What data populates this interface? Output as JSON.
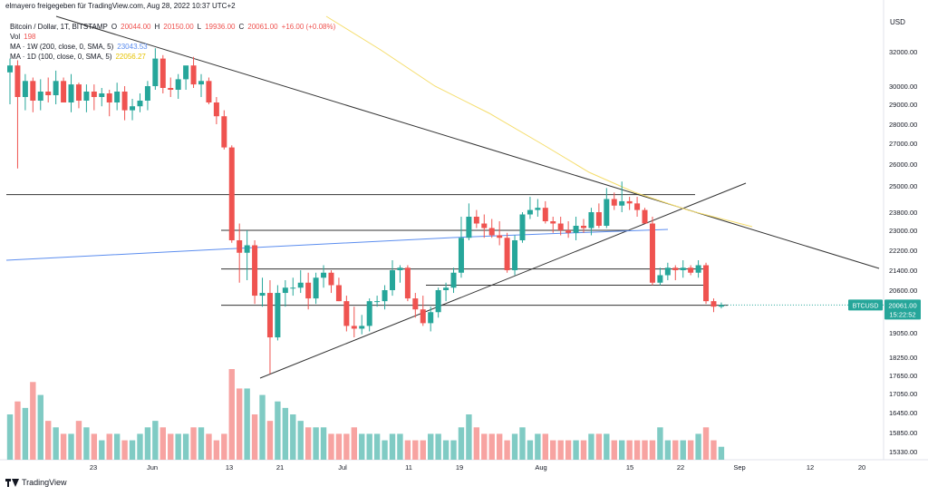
{
  "header": {
    "attribution": "elmayero freigegeben für TradingView.com, Aug 28, 2022 10:37 UTC+2"
  },
  "legend": {
    "symbol": "Bitcoin / Dollar, 1T, BITSTAMP",
    "ohlc": [
      {
        "k": "O",
        "v": "20044.00"
      },
      {
        "k": "H",
        "v": "20150.00"
      },
      {
        "k": "L",
        "v": "19936.00"
      },
      {
        "k": "C",
        "v": "20061.00"
      }
    ],
    "change": "+16.00 (+0.08%)",
    "vol_label": "Vol",
    "vol_value": "198",
    "ma1_label": "MA · 1W (200, close, 0, SMA, 5)",
    "ma1_value": "23043.53",
    "ma2_label": "MA · 1D (100, close, 0, SMA, 5)",
    "ma2_value": "22056.27"
  },
  "price_label": {
    "symbol": "BTCUSD",
    "price": "20061.00",
    "countdown": "15:22:52"
  },
  "footer": {
    "brand": "TradingView"
  },
  "colors": {
    "up": "#26a69a",
    "down": "#ef5350",
    "vol_up": "#80cbc4",
    "vol_down": "#f7a3a1",
    "ma_blue": "#5b8def",
    "ma_yellow": "#f5dd6b",
    "trendline": "#333333",
    "price_badge": "#26a69a"
  },
  "chart_data": {
    "type": "candlestick",
    "currency_label": "USD",
    "y_ticks": [
      "32000.00",
      "30000.00",
      "29000.00",
      "28000.00",
      "27000.00",
      "26000.00",
      "25000.00",
      "23800.00",
      "23000.00",
      "22200.00",
      "21400.00",
      "20600.00",
      "19050.00",
      "18250.00",
      "17650.00",
      "17050.00",
      "16450.00",
      "15850.00",
      "15330.00"
    ],
    "x_ticks": [
      "23",
      "Jun",
      "13",
      "21",
      "Jul",
      "11",
      "19",
      "Aug",
      "15",
      "22",
      "Sep",
      "12",
      "20"
    ],
    "candles": [
      {
        "o": 30800,
        "h": 31600,
        "l": 29000,
        "c": 31200
      },
      {
        "o": 31200,
        "h": 31500,
        "l": 25800,
        "c": 29400
      },
      {
        "o": 29400,
        "h": 30700,
        "l": 28700,
        "c": 30300
      },
      {
        "o": 30300,
        "h": 30500,
        "l": 28600,
        "c": 29200
      },
      {
        "o": 29200,
        "h": 30400,
        "l": 28700,
        "c": 29700
      },
      {
        "o": 29700,
        "h": 30500,
        "l": 29100,
        "c": 29500
      },
      {
        "o": 29500,
        "h": 30900,
        "l": 29000,
        "c": 30300
      },
      {
        "o": 30300,
        "h": 30500,
        "l": 29100,
        "c": 29100
      },
      {
        "o": 29100,
        "h": 30700,
        "l": 28600,
        "c": 30100
      },
      {
        "o": 30100,
        "h": 30200,
        "l": 28800,
        "c": 29200
      },
      {
        "o": 29200,
        "h": 30100,
        "l": 28600,
        "c": 29700
      },
      {
        "o": 29700,
        "h": 30100,
        "l": 28700,
        "c": 29400
      },
      {
        "o": 29400,
        "h": 29900,
        "l": 28900,
        "c": 29600
      },
      {
        "o": 29600,
        "h": 29800,
        "l": 28400,
        "c": 29100
      },
      {
        "o": 29100,
        "h": 30200,
        "l": 28700,
        "c": 29700
      },
      {
        "o": 29700,
        "h": 30000,
        "l": 28200,
        "c": 28700
      },
      {
        "o": 28700,
        "h": 29300,
        "l": 28200,
        "c": 28900
      },
      {
        "o": 28900,
        "h": 29600,
        "l": 28600,
        "c": 29200
      },
      {
        "o": 29200,
        "h": 30300,
        "l": 28700,
        "c": 30000
      },
      {
        "o": 30000,
        "h": 32200,
        "l": 29800,
        "c": 31600
      },
      {
        "o": 31600,
        "h": 31800,
        "l": 29600,
        "c": 29900
      },
      {
        "o": 29900,
        "h": 30500,
        "l": 29400,
        "c": 29800
      },
      {
        "o": 29800,
        "h": 30700,
        "l": 29300,
        "c": 30400
      },
      {
        "o": 30400,
        "h": 31100,
        "l": 29800,
        "c": 31200
      },
      {
        "o": 31200,
        "h": 31700,
        "l": 29900,
        "c": 30100
      },
      {
        "o": 30100,
        "h": 30700,
        "l": 29400,
        "c": 30300
      },
      {
        "o": 30300,
        "h": 30500,
        "l": 29000,
        "c": 29100
      },
      {
        "o": 29100,
        "h": 29400,
        "l": 28000,
        "c": 28400
      },
      {
        "o": 28400,
        "h": 28700,
        "l": 26700,
        "c": 26800
      },
      {
        "o": 26800,
        "h": 26900,
        "l": 22500,
        "c": 22600
      },
      {
        "o": 22600,
        "h": 23300,
        "l": 20900,
        "c": 22100
      },
      {
        "o": 22100,
        "h": 23000,
        "l": 21000,
        "c": 22400
      },
      {
        "o": 22400,
        "h": 22600,
        "l": 20100,
        "c": 20400
      },
      {
        "o": 20400,
        "h": 21100,
        "l": 20000,
        "c": 20500
      },
      {
        "o": 20500,
        "h": 21000,
        "l": 17700,
        "c": 18900
      },
      {
        "o": 18900,
        "h": 20800,
        "l": 18800,
        "c": 20500
      },
      {
        "o": 20500,
        "h": 21000,
        "l": 20000,
        "c": 20700
      },
      {
        "o": 20700,
        "h": 21100,
        "l": 20400,
        "c": 20700
      },
      {
        "o": 20700,
        "h": 21400,
        "l": 20500,
        "c": 20900
      },
      {
        "o": 20900,
        "h": 21300,
        "l": 19900,
        "c": 20300
      },
      {
        "o": 20300,
        "h": 21300,
        "l": 20100,
        "c": 21100
      },
      {
        "o": 21100,
        "h": 21600,
        "l": 20700,
        "c": 21300
      },
      {
        "o": 21300,
        "h": 21400,
        "l": 20500,
        "c": 20800
      },
      {
        "o": 20800,
        "h": 21100,
        "l": 20200,
        "c": 20200
      },
      {
        "o": 20200,
        "h": 20400,
        "l": 19100,
        "c": 19300
      },
      {
        "o": 19300,
        "h": 20000,
        "l": 18900,
        "c": 19200
      },
      {
        "o": 19200,
        "h": 19700,
        "l": 19000,
        "c": 19300
      },
      {
        "o": 19300,
        "h": 20300,
        "l": 19100,
        "c": 20200
      },
      {
        "o": 20200,
        "h": 20400,
        "l": 20000,
        "c": 20200
      },
      {
        "o": 20200,
        "h": 20800,
        "l": 19900,
        "c": 20600
      },
      {
        "o": 20600,
        "h": 21800,
        "l": 20400,
        "c": 21400
      },
      {
        "o": 21400,
        "h": 21600,
        "l": 20900,
        "c": 21500
      },
      {
        "o": 21500,
        "h": 21600,
        "l": 20200,
        "c": 20300
      },
      {
        "o": 20300,
        "h": 20500,
        "l": 19600,
        "c": 19900
      },
      {
        "o": 19900,
        "h": 20400,
        "l": 19300,
        "c": 19400
      },
      {
        "o": 19400,
        "h": 20000,
        "l": 19100,
        "c": 19800
      },
      {
        "o": 19800,
        "h": 20700,
        "l": 19600,
        "c": 20600
      },
      {
        "o": 20600,
        "h": 20900,
        "l": 20200,
        "c": 20700
      },
      {
        "o": 20700,
        "h": 21500,
        "l": 20500,
        "c": 21300
      },
      {
        "o": 21300,
        "h": 23600,
        "l": 21100,
        "c": 22700
      },
      {
        "o": 22700,
        "h": 24200,
        "l": 22600,
        "c": 23600
      },
      {
        "o": 23600,
        "h": 23900,
        "l": 23100,
        "c": 23300
      },
      {
        "o": 23300,
        "h": 23700,
        "l": 22700,
        "c": 23100
      },
      {
        "o": 23100,
        "h": 23500,
        "l": 22700,
        "c": 22800
      },
      {
        "o": 22800,
        "h": 23400,
        "l": 22400,
        "c": 22700
      },
      {
        "o": 22700,
        "h": 22900,
        "l": 21300,
        "c": 21400
      },
      {
        "o": 21400,
        "h": 22800,
        "l": 21200,
        "c": 22600
      },
      {
        "o": 22600,
        "h": 23800,
        "l": 22500,
        "c": 23700
      },
      {
        "o": 23700,
        "h": 24500,
        "l": 23500,
        "c": 23900
      },
      {
        "o": 23900,
        "h": 24400,
        "l": 23600,
        "c": 24000
      },
      {
        "o": 24000,
        "h": 24300,
        "l": 23300,
        "c": 23400
      },
      {
        "o": 23400,
        "h": 23600,
        "l": 22900,
        "c": 23300
      },
      {
        "o": 23300,
        "h": 23600,
        "l": 22800,
        "c": 23000
      },
      {
        "o": 23000,
        "h": 23400,
        "l": 22700,
        "c": 22900
      },
      {
        "o": 22900,
        "h": 23600,
        "l": 22600,
        "c": 23200
      },
      {
        "o": 23200,
        "h": 23500,
        "l": 22900,
        "c": 23100
      },
      {
        "o": 23100,
        "h": 24000,
        "l": 22800,
        "c": 23800
      },
      {
        "o": 23800,
        "h": 24200,
        "l": 23100,
        "c": 23200
      },
      {
        "o": 23200,
        "h": 24900,
        "l": 23100,
        "c": 24400
      },
      {
        "o": 24400,
        "h": 24700,
        "l": 23900,
        "c": 24100
      },
      {
        "o": 24100,
        "h": 25200,
        "l": 23800,
        "c": 24300
      },
      {
        "o": 24300,
        "h": 24500,
        "l": 23900,
        "c": 24200
      },
      {
        "o": 24200,
        "h": 24500,
        "l": 23600,
        "c": 23900
      },
      {
        "o": 23900,
        "h": 24000,
        "l": 23300,
        "c": 23300
      },
      {
        "o": 23300,
        "h": 23600,
        "l": 20800,
        "c": 20900
      },
      {
        "o": 20900,
        "h": 21500,
        "l": 20800,
        "c": 21200
      },
      {
        "o": 21200,
        "h": 21700,
        "l": 21000,
        "c": 21500
      },
      {
        "o": 21500,
        "h": 21600,
        "l": 21000,
        "c": 21400
      },
      {
        "o": 21400,
        "h": 21800,
        "l": 21100,
        "c": 21500
      },
      {
        "o": 21500,
        "h": 21600,
        "l": 21200,
        "c": 21300
      },
      {
        "o": 21300,
        "h": 21800,
        "l": 21100,
        "c": 21600
      },
      {
        "o": 21600,
        "h": 21700,
        "l": 20100,
        "c": 20200
      },
      {
        "o": 20200,
        "h": 20300,
        "l": 19800,
        "c": 20000
      },
      {
        "o": 20000,
        "h": 20150,
        "l": 19936,
        "c": 20061
      }
    ],
    "volumes": [
      7,
      9,
      8,
      12,
      10,
      6,
      5,
      4,
      4,
      6,
      5,
      4,
      3,
      4,
      4,
      3,
      3,
      4,
      5,
      6,
      5,
      4,
      4,
      4,
      5,
      5,
      4,
      3,
      4,
      14,
      11,
      11,
      7,
      10,
      6,
      9,
      8,
      7,
      6,
      5,
      5,
      5,
      4,
      4,
      4,
      5,
      4,
      4,
      4,
      3,
      4,
      4,
      3,
      3,
      3,
      4,
      4,
      3,
      3,
      5,
      7,
      5,
      4,
      4,
      4,
      3,
      4,
      5,
      3,
      4,
      4,
      3,
      3,
      3,
      3,
      3,
      4,
      4,
      4,
      3,
      3,
      3,
      3,
      3,
      3,
      5,
      3,
      3,
      3,
      3,
      4,
      5,
      3,
      2
    ]
  }
}
